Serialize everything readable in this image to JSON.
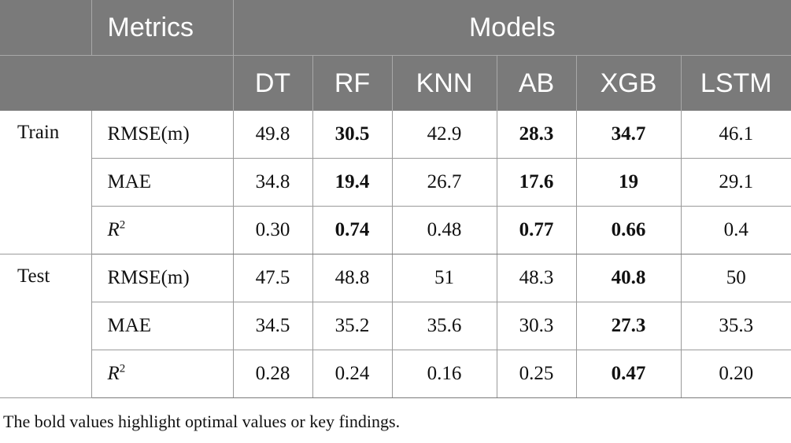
{
  "table": {
    "metrics_header": "Metrics",
    "models_header": "Models",
    "models": [
      "DT",
      "RF",
      "KNN",
      "AB",
      "XGB",
      "LSTM"
    ],
    "groups": [
      {
        "label": "Train",
        "rows": [
          {
            "metric": "RMSE(m)",
            "values": [
              "49.8",
              "30.5",
              "42.9",
              "28.3",
              "34.7",
              "46.1"
            ],
            "bold": [
              false,
              true,
              false,
              true,
              true,
              false
            ]
          },
          {
            "metric": "MAE",
            "values": [
              "34.8",
              "19.4",
              "26.7",
              "17.6",
              "19",
              "29.1"
            ],
            "bold": [
              false,
              true,
              false,
              true,
              true,
              false
            ]
          },
          {
            "metric_base": "R",
            "metric_sup": "2",
            "values": [
              "0.30",
              "0.74",
              "0.48",
              "0.77",
              "0.66",
              "0.4"
            ],
            "bold": [
              false,
              true,
              false,
              true,
              true,
              false
            ]
          }
        ]
      },
      {
        "label": "Test",
        "rows": [
          {
            "metric": "RMSE(m)",
            "values": [
              "47.5",
              "48.8",
              "51",
              "48.3",
              "40.8",
              "50"
            ],
            "bold": [
              false,
              false,
              false,
              false,
              true,
              false
            ]
          },
          {
            "metric": "MAE",
            "values": [
              "34.5",
              "35.2",
              "35.6",
              "30.3",
              "27.3",
              "35.3"
            ],
            "bold": [
              false,
              false,
              false,
              false,
              true,
              false
            ]
          },
          {
            "metric_base": "R",
            "metric_sup": "2",
            "values": [
              "0.28",
              "0.24",
              "0.16",
              "0.25",
              "0.47",
              "0.20"
            ],
            "bold": [
              false,
              false,
              false,
              false,
              true,
              false
            ]
          }
        ]
      }
    ]
  },
  "footnote": "The bold values highlight optimal values or key findings."
}
